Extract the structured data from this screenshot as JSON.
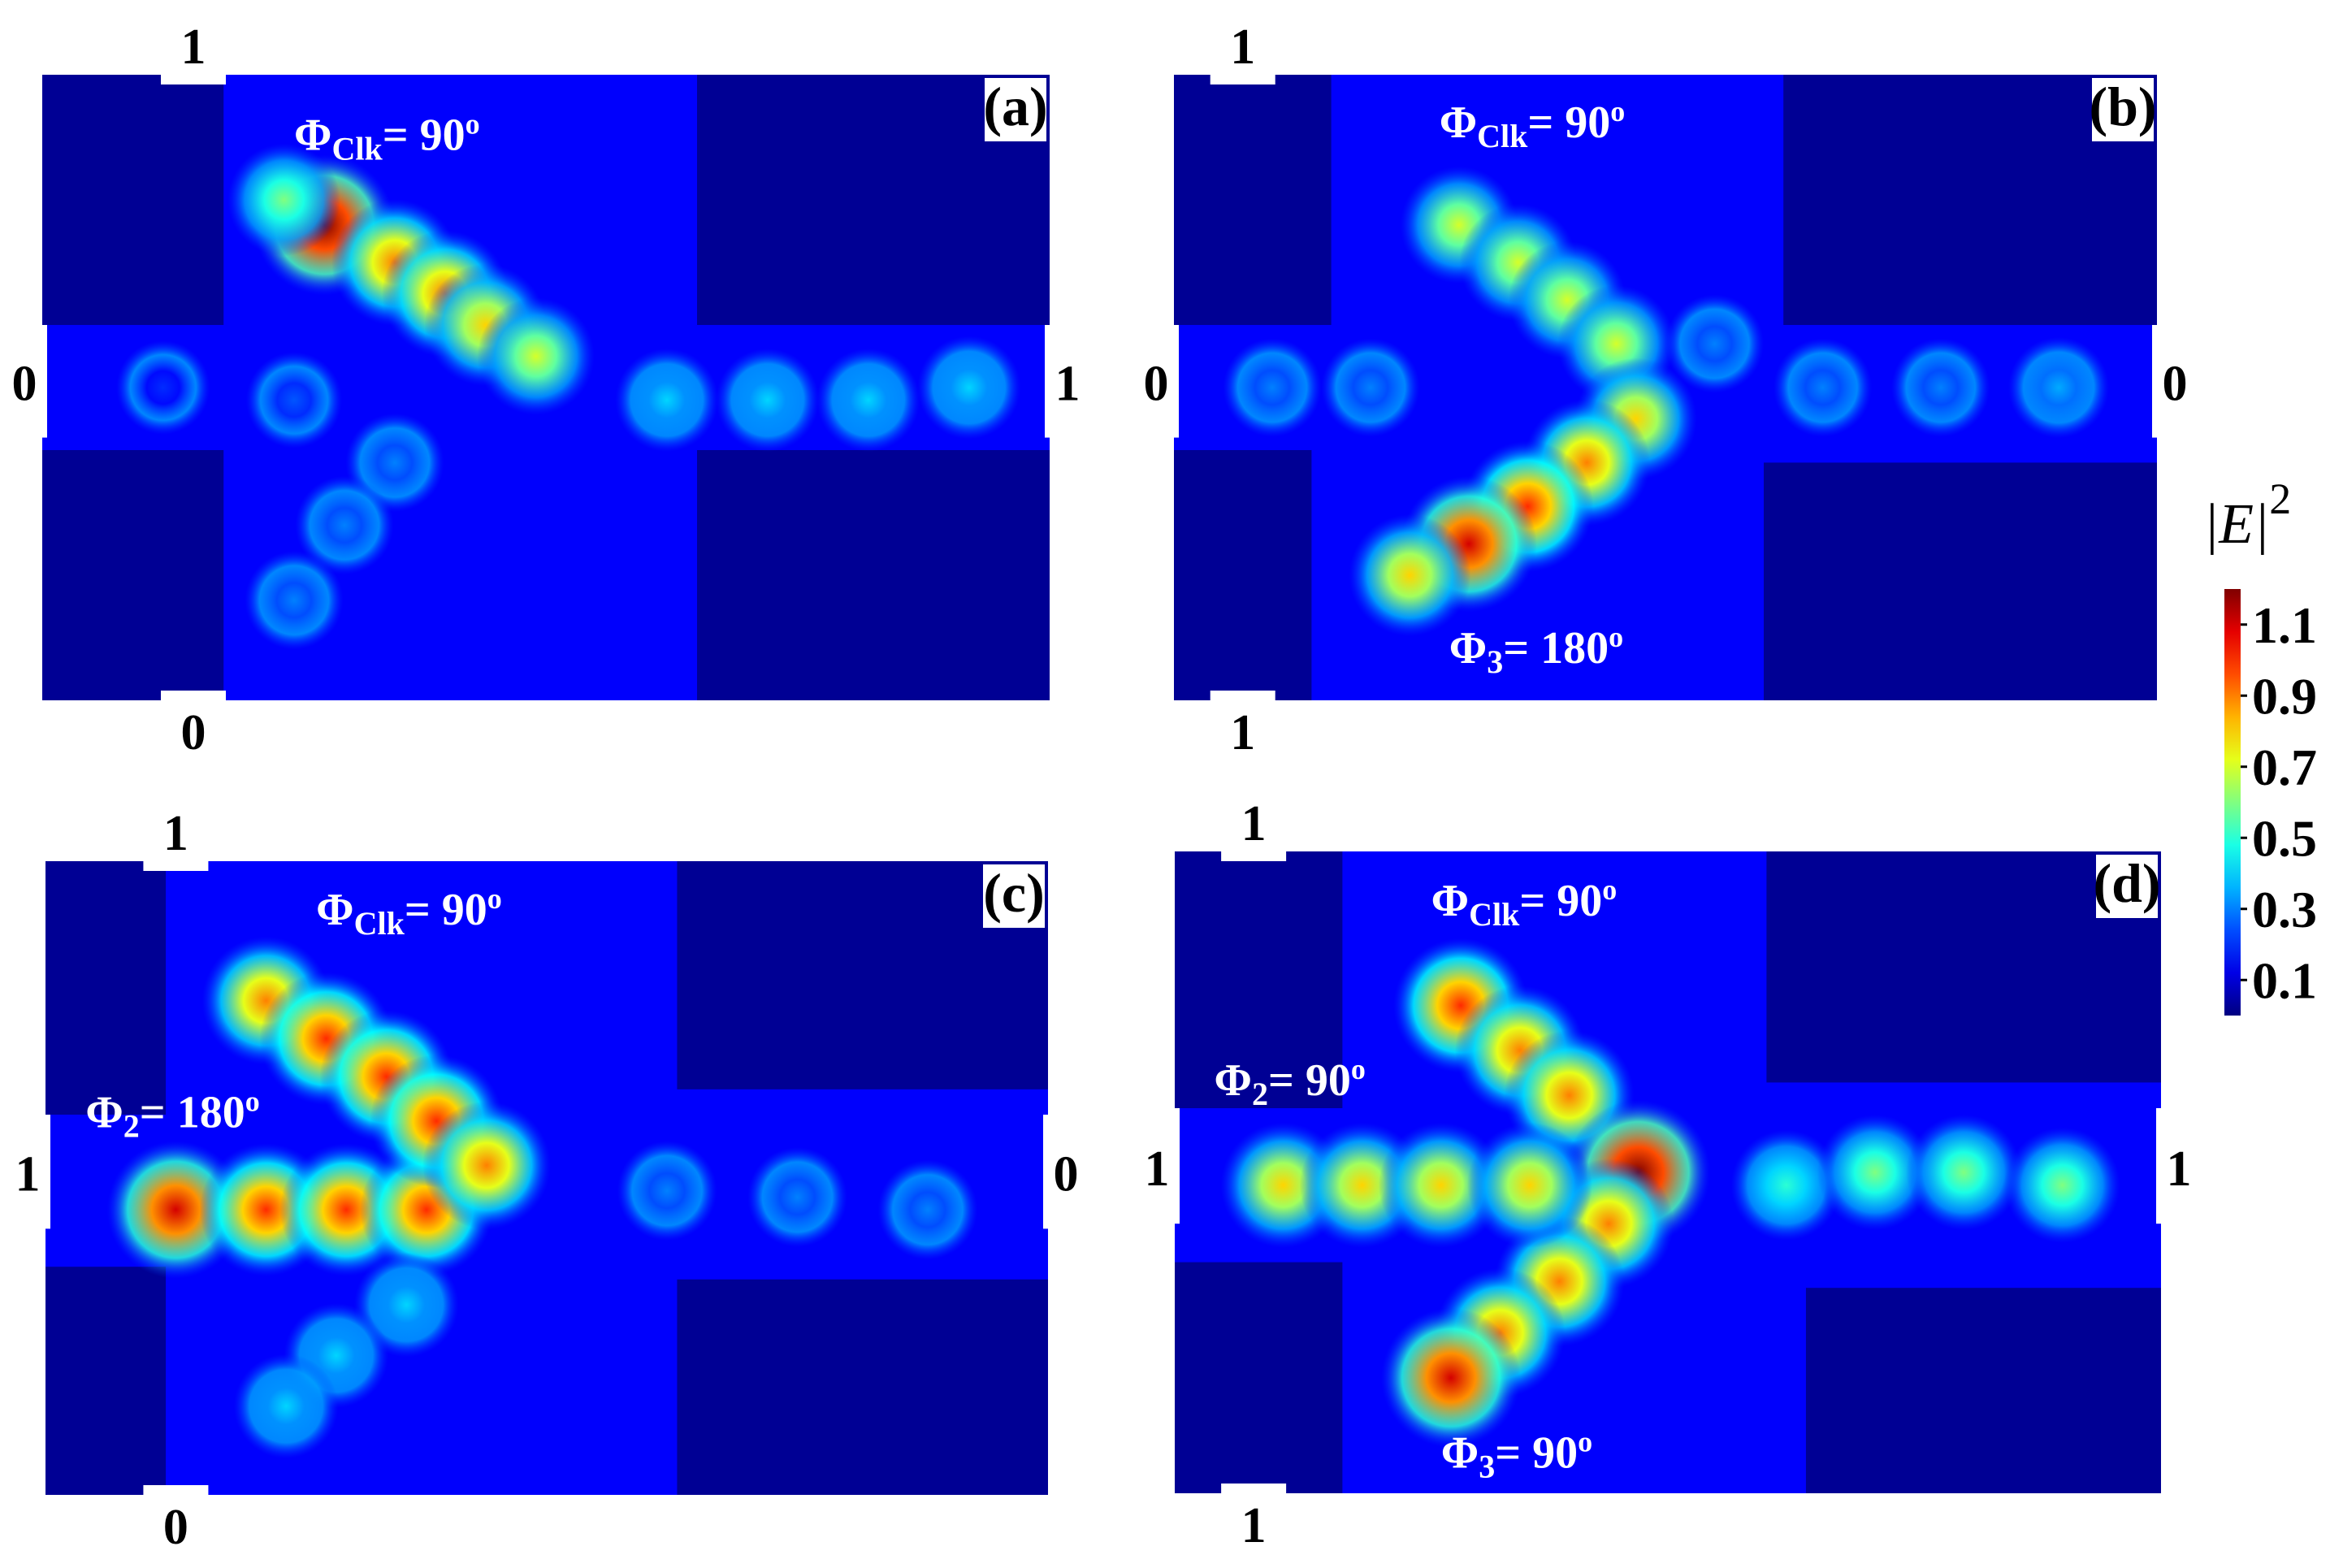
{
  "chart_data": [
    {
      "type": "heatmap",
      "panel": "(a)",
      "ports": {
        "top": "1",
        "bottom": "0",
        "left": "0",
        "right": "1"
      },
      "phases": [
        {
          "symbol": "Φ",
          "sub": "Clk",
          "value": "= 90",
          "sup": "o"
        }
      ],
      "hotspots": [
        {
          "x": 0.28,
          "y": 0.24,
          "v": 1.2
        },
        {
          "x": 0.35,
          "y": 0.3,
          "v": 0.9
        },
        {
          "x": 0.4,
          "y": 0.35,
          "v": 0.9
        },
        {
          "x": 0.44,
          "y": 0.4,
          "v": 0.8
        },
        {
          "x": 0.49,
          "y": 0.45,
          "v": 0.7
        },
        {
          "x": 0.24,
          "y": 0.2,
          "v": 0.6
        },
        {
          "x": 0.62,
          "y": 0.52,
          "v": 0.4
        },
        {
          "x": 0.72,
          "y": 0.52,
          "v": 0.4
        },
        {
          "x": 0.82,
          "y": 0.52,
          "v": 0.4
        },
        {
          "x": 0.92,
          "y": 0.5,
          "v": 0.4
        },
        {
          "x": 0.35,
          "y": 0.62,
          "v": 0.3
        },
        {
          "x": 0.3,
          "y": 0.72,
          "v": 0.3
        },
        {
          "x": 0.25,
          "y": 0.84,
          "v": 0.3
        },
        {
          "x": 0.12,
          "y": 0.5,
          "v": 0.2
        },
        {
          "x": 0.25,
          "y": 0.52,
          "v": 0.25
        }
      ]
    },
    {
      "type": "heatmap",
      "panel": "(b)",
      "ports": {
        "top": "1",
        "bottom": "1",
        "left": "0",
        "right": "0"
      },
      "phases": [
        {
          "symbol": "Φ",
          "sub": "Clk",
          "value": "= 90",
          "sup": "o"
        },
        {
          "symbol": "Φ",
          "sub": "3",
          "value": "= 180",
          "sup": "o"
        }
      ],
      "hotspots": [
        {
          "x": 0.29,
          "y": 0.24,
          "v": 0.7
        },
        {
          "x": 0.35,
          "y": 0.3,
          "v": 0.7
        },
        {
          "x": 0.4,
          "y": 0.36,
          "v": 0.7
        },
        {
          "x": 0.45,
          "y": 0.43,
          "v": 0.7
        },
        {
          "x": 0.47,
          "y": 0.55,
          "v": 0.8
        },
        {
          "x": 0.42,
          "y": 0.62,
          "v": 0.9
        },
        {
          "x": 0.36,
          "y": 0.69,
          "v": 1.0
        },
        {
          "x": 0.3,
          "y": 0.75,
          "v": 1.1
        },
        {
          "x": 0.24,
          "y": 0.8,
          "v": 0.8
        },
        {
          "x": 0.1,
          "y": 0.5,
          "v": 0.3
        },
        {
          "x": 0.2,
          "y": 0.5,
          "v": 0.3
        },
        {
          "x": 0.66,
          "y": 0.5,
          "v": 0.3
        },
        {
          "x": 0.78,
          "y": 0.5,
          "v": 0.3
        },
        {
          "x": 0.9,
          "y": 0.5,
          "v": 0.35
        },
        {
          "x": 0.55,
          "y": 0.43,
          "v": 0.3
        }
      ]
    },
    {
      "type": "heatmap",
      "panel": "(c)",
      "ports": {
        "top": "1",
        "bottom": "0",
        "left": "1",
        "right": "0"
      },
      "phases": [
        {
          "symbol": "Φ",
          "sub": "Clk",
          "value": "= 90",
          "sup": "o"
        },
        {
          "symbol": "Φ",
          "sub": "2",
          "value": "= 180",
          "sup": "o"
        }
      ],
      "hotspots": [
        {
          "x": 0.13,
          "y": 0.55,
          "v": 1.1
        },
        {
          "x": 0.22,
          "y": 0.55,
          "v": 1.0
        },
        {
          "x": 0.3,
          "y": 0.55,
          "v": 1.0
        },
        {
          "x": 0.38,
          "y": 0.55,
          "v": 1.0
        },
        {
          "x": 0.22,
          "y": 0.22,
          "v": 0.9
        },
        {
          "x": 0.28,
          "y": 0.28,
          "v": 1.0
        },
        {
          "x": 0.34,
          "y": 0.34,
          "v": 1.0
        },
        {
          "x": 0.39,
          "y": 0.41,
          "v": 1.0
        },
        {
          "x": 0.44,
          "y": 0.48,
          "v": 0.9
        },
        {
          "x": 0.36,
          "y": 0.7,
          "v": 0.4
        },
        {
          "x": 0.29,
          "y": 0.78,
          "v": 0.4
        },
        {
          "x": 0.24,
          "y": 0.86,
          "v": 0.4
        },
        {
          "x": 0.62,
          "y": 0.52,
          "v": 0.3
        },
        {
          "x": 0.75,
          "y": 0.53,
          "v": 0.3
        },
        {
          "x": 0.88,
          "y": 0.55,
          "v": 0.3
        }
      ]
    },
    {
      "type": "heatmap",
      "panel": "(d)",
      "ports": {
        "top": "1",
        "bottom": "1",
        "left": "1",
        "right": "1"
      },
      "phases": [
        {
          "symbol": "Φ",
          "sub": "Clk",
          "value": "= 90",
          "sup": "o"
        },
        {
          "symbol": "Φ",
          "sub": "2",
          "value": "= 90",
          "sup": "o"
        },
        {
          "symbol": "Φ",
          "sub": "3",
          "value": "= 90",
          "sup": "o"
        }
      ],
      "hotspots": [
        {
          "x": 0.29,
          "y": 0.24,
          "v": 1.0
        },
        {
          "x": 0.35,
          "y": 0.31,
          "v": 0.9
        },
        {
          "x": 0.4,
          "y": 0.38,
          "v": 0.9
        },
        {
          "x": 0.47,
          "y": 0.5,
          "v": 1.2
        },
        {
          "x": 0.44,
          "y": 0.58,
          "v": 0.9
        },
        {
          "x": 0.39,
          "y": 0.67,
          "v": 0.9
        },
        {
          "x": 0.33,
          "y": 0.75,
          "v": 0.9
        },
        {
          "x": 0.28,
          "y": 0.82,
          "v": 1.1
        },
        {
          "x": 0.11,
          "y": 0.52,
          "v": 0.8
        },
        {
          "x": 0.19,
          "y": 0.52,
          "v": 0.8
        },
        {
          "x": 0.27,
          "y": 0.52,
          "v": 0.8
        },
        {
          "x": 0.36,
          "y": 0.52,
          "v": 0.8
        },
        {
          "x": 0.62,
          "y": 0.52,
          "v": 0.5
        },
        {
          "x": 0.71,
          "y": 0.5,
          "v": 0.6
        },
        {
          "x": 0.8,
          "y": 0.5,
          "v": 0.6
        },
        {
          "x": 0.9,
          "y": 0.52,
          "v": 0.6
        }
      ]
    }
  ],
  "colorbar": {
    "title": "|E|",
    "title_sup": "2",
    "ticks": [
      "1.1",
      "0.9",
      "0.7",
      "0.5",
      "0.3",
      "0.1"
    ],
    "min": 0.0,
    "max": 1.2
  }
}
